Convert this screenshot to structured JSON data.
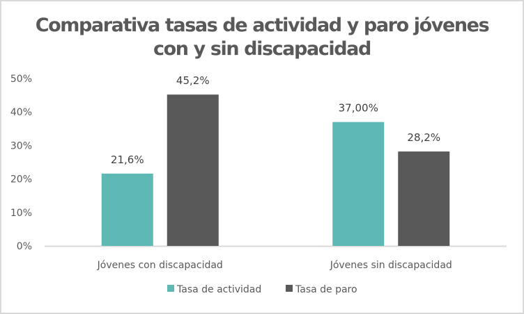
{
  "chart_data": {
    "type": "bar",
    "title_lines": [
      "Comparativa tasas de actividad y paro jóvenes",
      "con y sin discapacidad"
    ],
    "categories": [
      "Jóvenes con discapacidad",
      "Jóvenes sin discapacidad"
    ],
    "series": [
      {
        "name": "Tasa de actividad",
        "color": "#5eb8b3",
        "values": [
          21.6,
          37.0
        ],
        "labels": [
          "21,6%",
          "37,00%"
        ]
      },
      {
        "name": "Tasa de paro",
        "color": "#595959",
        "values": [
          45.2,
          28.2
        ],
        "labels": [
          "45,2%",
          "28,2%"
        ]
      }
    ],
    "ylim": [
      0,
      50
    ],
    "yticks": [
      0,
      10,
      20,
      30,
      40,
      50
    ],
    "ytick_labels": [
      "0%",
      "10%",
      "20%",
      "30%",
      "40%",
      "50%"
    ],
    "xlabel": "",
    "ylabel": "",
    "grid": false,
    "legend_position": "bottom"
  }
}
